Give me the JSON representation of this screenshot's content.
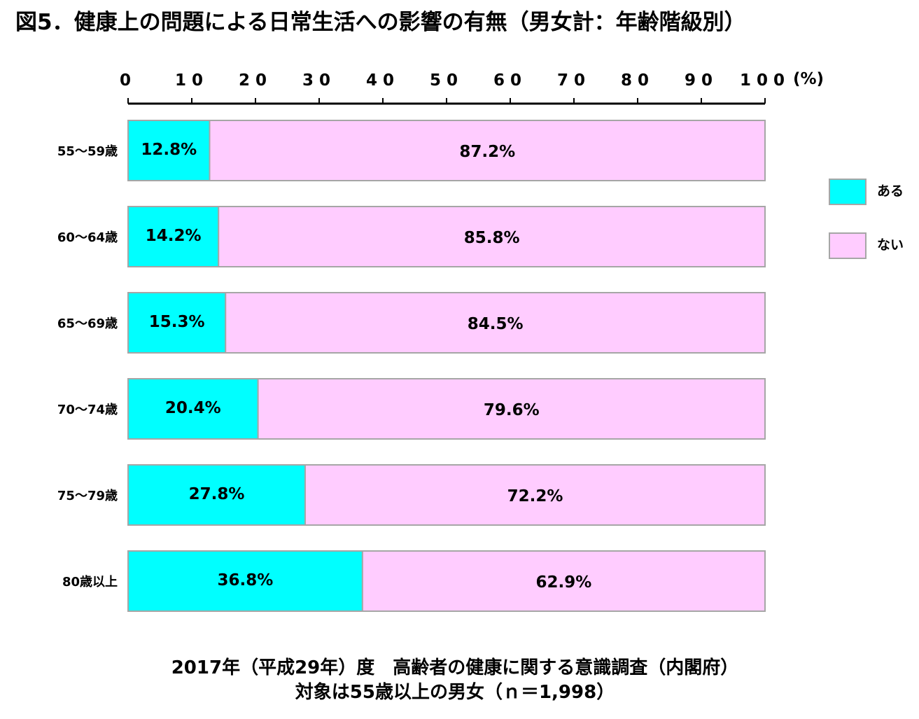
{
  "chart_data": {
    "type": "bar",
    "orientation": "horizontal",
    "stacked": true,
    "title": "図5．健康上の問題による日常生活への影響の有無（男女計：年齢階級別）",
    "unit_label": "(%)",
    "xlim": [
      0,
      100
    ],
    "xticks": [
      "0",
      "10",
      "20",
      "30",
      "40",
      "50",
      "60",
      "70",
      "80",
      "90",
      "100"
    ],
    "categories": [
      "55〜59歳",
      "60〜64歳",
      "65〜69歳",
      "70〜74歳",
      "75〜79歳",
      "80歳以上"
    ],
    "series": [
      {
        "name": "ある",
        "color": "#00ffff",
        "values": [
          12.8,
          14.2,
          15.3,
          20.4,
          27.8,
          36.8
        ],
        "labels": [
          "12.8%",
          "14.2%",
          "15.3%",
          "20.4%",
          "27.8%",
          "36.8%"
        ]
      },
      {
        "name": "ない",
        "color": "#ffccff",
        "values": [
          87.2,
          85.8,
          84.5,
          79.6,
          72.2,
          62.9
        ],
        "labels": [
          "87.2%",
          "85.8%",
          "84.5%",
          "79.6%",
          "72.2%",
          "62.9%"
        ]
      }
    ],
    "legend_position": "right",
    "grid": false,
    "source_line1": "2017年（平成29年）度　高齢者の健康に関する意識調査（内閣府）",
    "source_line2": "対象は55歳以上の男女（ｎ＝1,998）"
  }
}
